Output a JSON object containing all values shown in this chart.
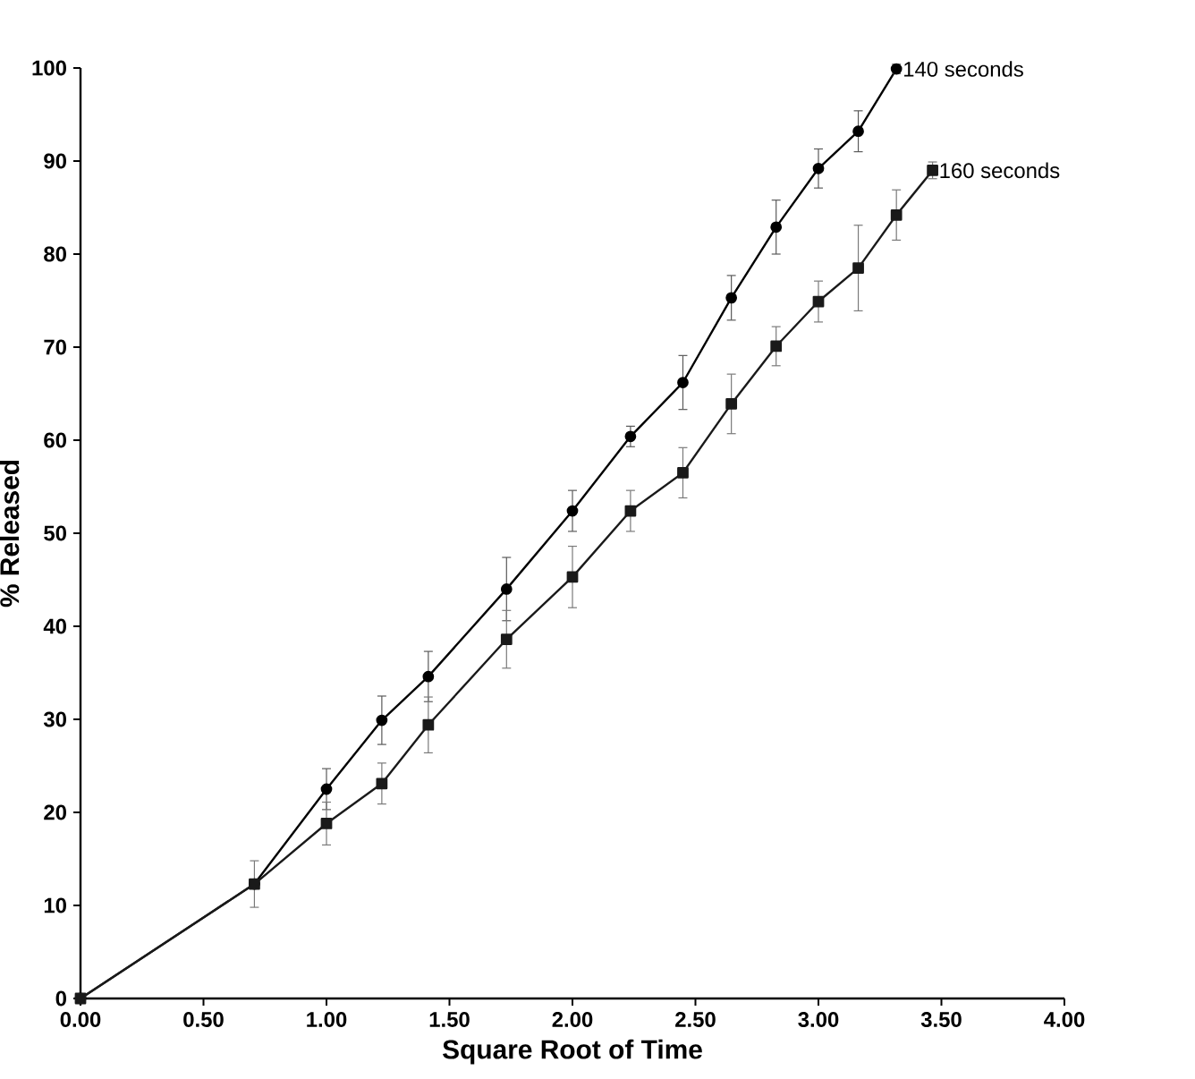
{
  "chart_data": {
    "type": "line",
    "xlabel": "Square Root of Time",
    "ylabel": "% Released",
    "xlim": [
      0,
      4
    ],
    "ylim": [
      0,
      100
    ],
    "xticks": [
      {
        "value": 0,
        "label": "0.00"
      },
      {
        "value": 0.5,
        "label": "0.50"
      },
      {
        "value": 1,
        "label": "1.00"
      },
      {
        "value": 1.5,
        "label": "1.50"
      },
      {
        "value": 2,
        "label": "2.00"
      },
      {
        "value": 2.5,
        "label": "2.50"
      },
      {
        "value": 3,
        "label": "3.00"
      },
      {
        "value": 3.5,
        "label": "3.50"
      },
      {
        "value": 4,
        "label": "4.00"
      }
    ],
    "yticks": [
      0,
      10,
      20,
      30,
      40,
      50,
      60,
      70,
      80,
      90,
      100
    ],
    "grid": false,
    "legend": false,
    "line_style": "solid",
    "series": [
      {
        "name": "140 seconds",
        "color": "#000000",
        "marker": "circle",
        "x": [
          0,
          0.707,
          1,
          1.225,
          1.414,
          1.732,
          2,
          2.236,
          2.449,
          2.646,
          2.828,
          3,
          3.162,
          3.317
        ],
        "values": [
          0,
          12.3,
          22.5,
          29.9,
          34.6,
          44.0,
          52.4,
          60.4,
          66.2,
          75.3,
          82.9,
          89.2,
          93.2,
          99.9
        ],
        "errors": [
          null,
          null,
          2.2,
          2.6,
          2.7,
          3.4,
          2.2,
          1.1,
          2.9,
          2.4,
          2.9,
          2.1,
          2.2,
          0.5
        ]
      },
      {
        "name": "160 seconds",
        "color": "#1a1a1a",
        "marker": "square",
        "x": [
          0,
          0.707,
          1,
          1.225,
          1.414,
          1.732,
          2,
          2.236,
          2.449,
          2.646,
          2.828,
          3,
          3.162,
          3.317,
          3.464
        ],
        "values": [
          0,
          12.3,
          18.8,
          23.1,
          29.4,
          38.6,
          45.3,
          52.4,
          56.5,
          63.9,
          70.1,
          74.9,
          78.5,
          84.2,
          89.0
        ],
        "errors": [
          null,
          2.5,
          2.3,
          2.2,
          3.0,
          3.1,
          3.3,
          2.2,
          2.7,
          3.2,
          2.1,
          2.2,
          4.6,
          2.7,
          0.9
        ]
      }
    ]
  }
}
